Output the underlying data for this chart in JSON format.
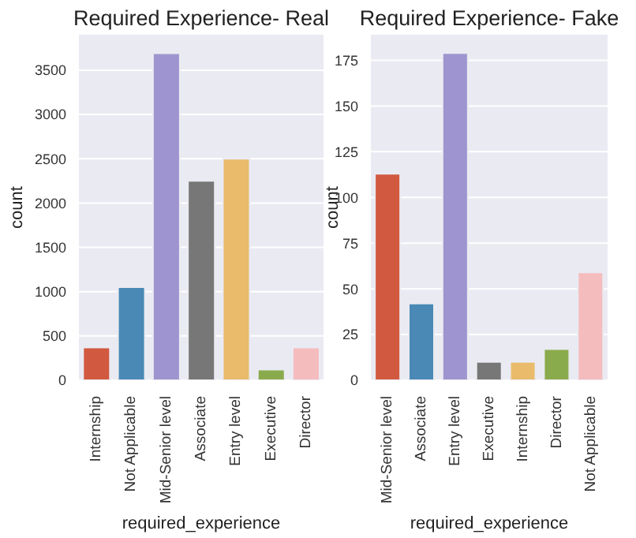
{
  "chart_data": [
    {
      "type": "bar",
      "title": "Required Experience- Real",
      "xlabel": "required_experience",
      "ylabel": "count",
      "categories": [
        "Internship",
        "Not Applicable",
        "Mid-Senior level",
        "Associate",
        "Entry level",
        "Executive",
        "Director"
      ],
      "values": [
        370,
        1050,
        3690,
        2250,
        2500,
        120,
        370
      ],
      "colors": [
        "#d1593f",
        "#4a89b5",
        "#9e94cf",
        "#777777",
        "#e9bb6a",
        "#8aab4c",
        "#f5bcbe"
      ],
      "ylim": [
        0,
        3900
      ],
      "yticks": [
        0,
        500,
        1000,
        1500,
        2000,
        2500,
        3000,
        3500
      ],
      "grid": "y",
      "legend": false
    },
    {
      "type": "bar",
      "title": "Required Experience- Fake",
      "xlabel": "required_experience",
      "ylabel": "count",
      "categories": [
        "Mid-Senior level",
        "Associate",
        "Entry level",
        "Executive",
        "Internship",
        "Director",
        "Not Applicable"
      ],
      "values": [
        113,
        42,
        179,
        10,
        10,
        17,
        59
      ],
      "colors": [
        "#d1593f",
        "#4a89b5",
        "#9e94cf",
        "#777777",
        "#e9bb6a",
        "#8aab4c",
        "#f5bcbe"
      ],
      "ylim": [
        0,
        189
      ],
      "yticks": [
        0,
        25,
        50,
        75,
        100,
        125,
        150,
        175
      ],
      "grid": "y",
      "legend": false
    }
  ]
}
